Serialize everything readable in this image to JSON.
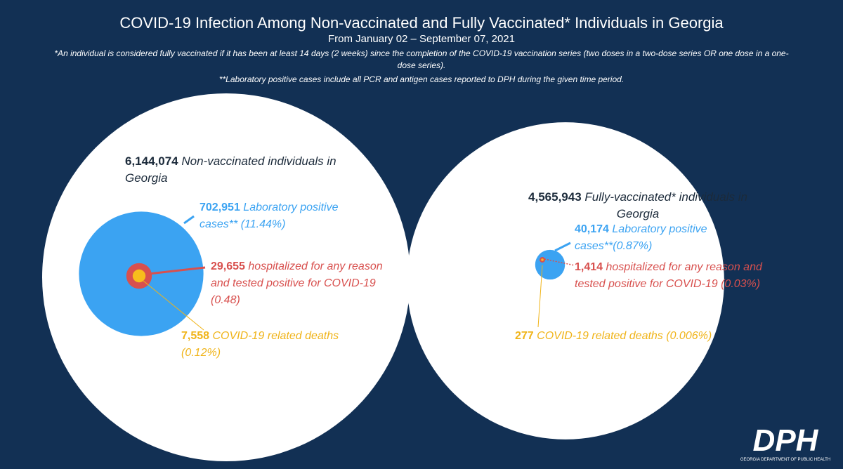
{
  "header": {
    "title": "COVID-19 Infection Among Non-vaccinated and Fully Vaccinated* Individuals in Georgia",
    "subtitle": "From January 02 – September 07, 2021",
    "notes": [
      "*An individual is considered fully vaccinated if it has been at least 14 days (2 weeks) since the completion of the COVID-19 vaccination series (two doses in a two-dose series OR one dose in a one-dose series).",
      "**Laboratory positive cases include all PCR and antigen cases reported to DPH during the given time period."
    ]
  },
  "panels": [
    {
      "population": {
        "value": 6144074,
        "label": "6,144,074",
        "text": "Non-vaccinated individuals in Georgia"
      },
      "cases": {
        "value": 702951,
        "label": "702,951",
        "text": "Laboratory positive cases** (11.44%)"
      },
      "hospitalized": {
        "value": 29655,
        "label": "29,655",
        "text": "hospitalized for any reason and tested positive for COVID-19 (0.48)"
      },
      "deaths": {
        "value": 7558,
        "label": "7,558",
        "text": "COVID-19 related deaths (0.12%)"
      }
    },
    {
      "population": {
        "value": 4565943,
        "label": "4,565,943",
        "text": "Fully-vaccinated* individuals in Georgia"
      },
      "cases": {
        "value": 40174,
        "label": "40,174",
        "text": "Laboratory positive cases**(0.87%)"
      },
      "hospitalized": {
        "value": 1414,
        "label": "1,414",
        "text": "hospitalized for any reason and tested positive for COVID-19 (0.03%)"
      },
      "deaths": {
        "value": 277,
        "label": "277",
        "text": "COVID-19 related deaths (0.006%)"
      }
    }
  ],
  "logo": {
    "mark": "DPH",
    "text": "GEORGIA DEPARTMENT OF PUBLIC HEALTH"
  }
}
